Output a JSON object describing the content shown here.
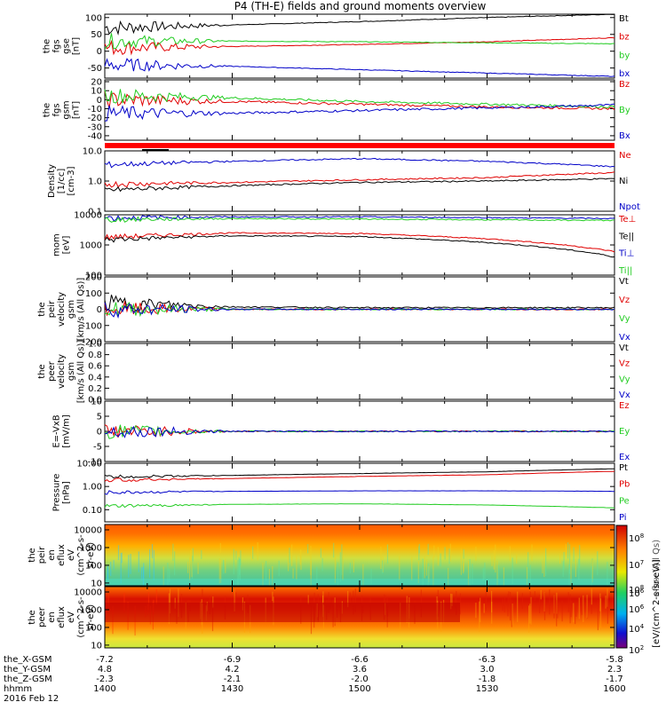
{
  "title": "P4 (TH-E) fields and ground moments overview",
  "colors": {
    "black": "#000000",
    "red": "#e00000",
    "green": "#22cc22",
    "blue": "#0000c8"
  },
  "chart_data": [
    {
      "type": "line",
      "id": "fgs_gse",
      "ylabel": [
        "the",
        "fgs",
        "gse",
        "[nT]"
      ],
      "ylim": [
        -80,
        110
      ],
      "yticks": [
        100,
        50,
        0,
        -50
      ],
      "series": [
        {
          "name": "Bt",
          "color": "black",
          "x": [
            1400,
            1430,
            1500,
            1530,
            1600
          ],
          "y": [
            70,
            78,
            88,
            100,
            110
          ]
        },
        {
          "name": "bz",
          "color": "red",
          "x": [
            1400,
            1430,
            1500,
            1530,
            1600
          ],
          "y": [
            10,
            14,
            20,
            28,
            40
          ]
        },
        {
          "name": "by",
          "color": "green",
          "x": [
            1400,
            1430,
            1500,
            1530,
            1600
          ],
          "y": [
            30,
            30,
            28,
            25,
            22
          ]
        },
        {
          "name": "bx",
          "color": "blue",
          "x": [
            1400,
            1430,
            1500,
            1530,
            1600
          ],
          "y": [
            -40,
            -45,
            -55,
            -65,
            -75
          ]
        }
      ]
    },
    {
      "type": "line",
      "id": "fgs_gsm",
      "ylabel": [
        "the",
        "fgs",
        "gsm",
        "[nT]"
      ],
      "ylim": [
        -45,
        22
      ],
      "yticks": [
        20,
        10,
        0,
        -10,
        -20,
        -30,
        -40
      ],
      "series": [
        {
          "name": "Bz",
          "color": "red",
          "x": [
            1400,
            1430,
            1500,
            1530,
            1600
          ],
          "y": [
            0,
            -2,
            -5,
            -8,
            -10
          ]
        },
        {
          "name": "By",
          "color": "green",
          "x": [
            1400,
            1430,
            1500,
            1530,
            1600
          ],
          "y": [
            5,
            2,
            -2,
            -5,
            -8
          ]
        },
        {
          "name": "Bx",
          "color": "blue",
          "x": [
            1400,
            1430,
            1500,
            1530,
            1600
          ],
          "y": [
            -15,
            -15,
            -12,
            -9,
            -6
          ]
        }
      ]
    },
    {
      "type": "line",
      "id": "density",
      "scale": "log",
      "ylabel": [
        "Density",
        "[1/cc]",
        "[cm-3]"
      ],
      "ylim": [
        0.1,
        10
      ],
      "yticks": [
        10.0,
        1.0,
        0.1
      ],
      "ytick_labels": [
        "10.0",
        "1.0",
        "0.1"
      ],
      "series": [
        {
          "name": "Ne",
          "color": "red",
          "x": [
            1400,
            1430,
            1500,
            1530,
            1600
          ],
          "y": [
            0.8,
            0.9,
            1.1,
            1.3,
            1.9
          ]
        },
        {
          "name": "Ni",
          "color": "black",
          "x": [
            1400,
            1430,
            1500,
            1530,
            1600
          ],
          "y": [
            0.5,
            0.7,
            0.9,
            1.0,
            1.2
          ]
        },
        {
          "name": "Npot",
          "color": "blue",
          "x": [
            1400,
            1430,
            1500,
            1530,
            1600
          ],
          "y": [
            3.5,
            4.5,
            5.5,
            4.5,
            3.0
          ]
        }
      ]
    },
    {
      "type": "line",
      "id": "temperature",
      "scale": "log",
      "ylabel": [
        "mom",
        "[eV]"
      ],
      "ylim": [
        100,
        10000
      ],
      "yticks": [
        10000,
        1000,
        100
      ],
      "series": [
        {
          "name": "Te⊥",
          "color": "red",
          "x": [
            1400,
            1430,
            1500,
            1530,
            1600
          ],
          "y": [
            1800,
            2500,
            2400,
            1600,
            600
          ]
        },
        {
          "name": "Te||",
          "color": "black",
          "x": [
            1400,
            1430,
            1500,
            1530,
            1600
          ],
          "y": [
            1500,
            2000,
            1900,
            1200,
            400
          ]
        },
        {
          "name": "Ti⊥",
          "color": "blue",
          "x": [
            1400,
            1430,
            1500,
            1530,
            1600
          ],
          "y": [
            8000,
            8500,
            8500,
            8000,
            7500
          ]
        },
        {
          "name": "Ti||",
          "color": "green",
          "x": [
            1400,
            1430,
            1500,
            1530,
            1600
          ],
          "y": [
            7000,
            7500,
            7200,
            6800,
            6500
          ]
        }
      ]
    },
    {
      "type": "line",
      "id": "peir_velocity",
      "ylabel": [
        "the",
        "peir",
        "velocity",
        "gsm",
        "[km/s (All Qs)]"
      ],
      "ylim": [
        -200,
        200
      ],
      "yticks": [
        200,
        100,
        0,
        -100,
        -200
      ],
      "series": [
        {
          "name": "Vt",
          "color": "black",
          "x": [
            1400,
            1430,
            1500,
            1530,
            1600
          ],
          "y": [
            40,
            15,
            10,
            10,
            10
          ]
        },
        {
          "name": "Vz",
          "color": "red",
          "x": [
            1400,
            1430,
            1500,
            1530,
            1600
          ],
          "y": [
            0,
            0,
            0,
            0,
            0
          ]
        },
        {
          "name": "Vy",
          "color": "green",
          "x": [
            1400,
            1430,
            1500,
            1530,
            1600
          ],
          "y": [
            0,
            0,
            0,
            0,
            0
          ]
        },
        {
          "name": "Vx",
          "color": "blue",
          "x": [
            1400,
            1430,
            1500,
            1530,
            1600
          ],
          "y": [
            0,
            0,
            0,
            0,
            0
          ]
        }
      ]
    },
    {
      "type": "line",
      "id": "peer_velocity",
      "ylabel": [
        "the",
        "peer",
        "velocity",
        "gsm",
        "[km/s (All Qs)]"
      ],
      "ylim": [
        0,
        1
      ],
      "yticks": [
        1.0,
        0.8,
        0.6,
        0.4,
        0.2,
        0.0
      ],
      "ytick_labels": [
        "1.0",
        "0.8",
        "0.6",
        "0.4",
        "0.2",
        "0.0"
      ],
      "series": [
        {
          "name": "Vt",
          "color": "black",
          "x": [],
          "y": []
        },
        {
          "name": "Vz",
          "color": "red",
          "x": [],
          "y": []
        },
        {
          "name": "Vy",
          "color": "green",
          "x": [],
          "y": []
        },
        {
          "name": "Vx",
          "color": "blue",
          "x": [],
          "y": []
        }
      ]
    },
    {
      "type": "line",
      "id": "efield",
      "ylabel": [
        "E=-VxB",
        "[mV/m]"
      ],
      "ylim": [
        -10,
        10
      ],
      "yticks": [
        10,
        5,
        0,
        -5,
        -10
      ],
      "series": [
        {
          "name": "Ez",
          "color": "red",
          "x": [
            1400,
            1430,
            1500,
            1530,
            1600
          ],
          "y": [
            0,
            0,
            0,
            0,
            0
          ]
        },
        {
          "name": "Ey",
          "color": "green",
          "x": [
            1400,
            1430,
            1500,
            1530,
            1600
          ],
          "y": [
            0,
            0,
            0,
            0,
            0
          ]
        },
        {
          "name": "Ex",
          "color": "blue",
          "x": [
            1400,
            1430,
            1500,
            1530,
            1600
          ],
          "y": [
            0,
            0,
            0,
            0,
            0
          ]
        }
      ]
    },
    {
      "type": "line",
      "id": "pressure",
      "scale": "log",
      "ylabel": [
        "Pressure",
        "[nPa]"
      ],
      "ylim": [
        0.03,
        10
      ],
      "yticks": [
        10.0,
        1.0,
        0.1
      ],
      "ytick_labels": [
        "10.00",
        "1.00",
        "0.10"
      ],
      "series": [
        {
          "name": "Pt",
          "color": "black",
          "x": [
            1400,
            1430,
            1500,
            1530,
            1600
          ],
          "y": [
            2.6,
            3.0,
            3.6,
            4.3,
            5.8
          ]
        },
        {
          "name": "Pb",
          "color": "red",
          "x": [
            1400,
            1430,
            1500,
            1530,
            1600
          ],
          "y": [
            1.9,
            2.2,
            2.7,
            3.2,
            4.5
          ]
        },
        {
          "name": "Pe",
          "color": "green",
          "x": [
            1400,
            1430,
            1500,
            1530,
            1600
          ],
          "y": [
            0.14,
            0.17,
            0.18,
            0.16,
            0.12
          ]
        },
        {
          "name": "Pi",
          "color": "blue",
          "x": [
            1400,
            1430,
            1500,
            1530,
            1600
          ],
          "y": [
            0.55,
            0.62,
            0.65,
            0.65,
            0.62
          ]
        }
      ]
    },
    {
      "type": "heatmap",
      "id": "peir_en_eflux",
      "scale": "log",
      "ylabel": [
        "the",
        "peir",
        "en",
        "eflux",
        "eV",
        "(cm^2-s-",
        "sr-eV)"
      ],
      "ylim": [
        7,
        20000
      ],
      "yticks": [
        10000,
        1000,
        100,
        10
      ],
      "ytick_labels": [
        "10000",
        "1000",
        "100",
        "10"
      ]
    },
    {
      "type": "heatmap",
      "id": "peer_en_eflux",
      "scale": "log",
      "ylabel": [
        "the",
        "peer",
        "en",
        "eflux",
        "eV",
        "(cm^2-s-",
        "sr-eV)"
      ],
      "ylim": [
        7,
        20000
      ],
      "yticks": [
        10000,
        1000,
        100,
        10
      ],
      "ytick_labels": [
        "10000",
        "1000",
        "100",
        "10"
      ]
    }
  ],
  "colorbar": {
    "tick_labels": [
      "10^8",
      "10^7",
      "10^6",
      "10^8",
      "10^6",
      "10^4",
      "10^2"
    ],
    "label": "[eV/(cm^2-s-sr-eV)]",
    "label_overlap": "eflux (All Qs)"
  },
  "xaxis": {
    "rows": [
      {
        "label": "the_X-GSM",
        "values": [
          "-7.2",
          "-6.9",
          "-6.6",
          "-6.3",
          "-5.8"
        ]
      },
      {
        "label": "the_Y-GSM",
        "values": [
          "4.8",
          "4.2",
          "3.6",
          "3.0",
          "2.3"
        ]
      },
      {
        "label": "the_Z-GSM",
        "values": [
          "-2.3",
          "-2.1",
          "-2.0",
          "-1.8",
          "-1.7"
        ]
      },
      {
        "label": "hhmm",
        "values": [
          "1400",
          "1430",
          "1500",
          "1530",
          "1600"
        ]
      }
    ],
    "date": "2016 Feb 12"
  }
}
